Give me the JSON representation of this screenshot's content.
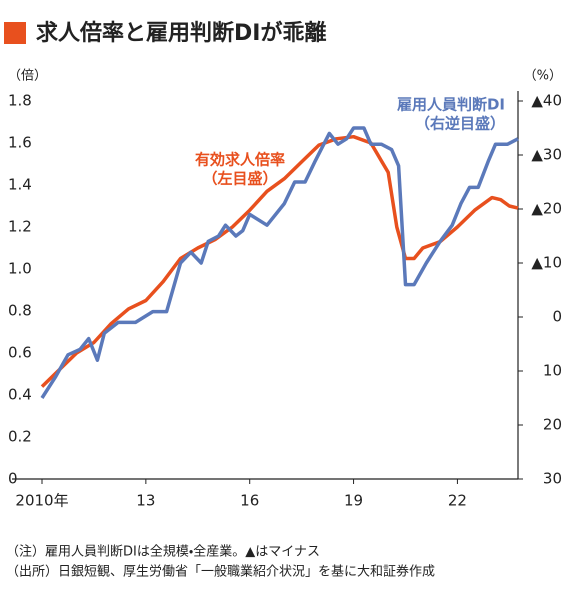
{
  "chart_data": {
    "type": "line",
    "title": "求人倍率と雇用判断DIが乖離",
    "y_label": "（倍）",
    "y2_label": "（%）",
    "xlim": [
      2010,
      2023.75
    ],
    "xticks": [
      {
        "value": 2010,
        "label": "2010年"
      },
      13,
      16,
      19,
      22
    ],
    "xtick_years": [
      2010,
      2013,
      2016,
      2019,
      2022
    ],
    "ylim": [
      0,
      1.8
    ],
    "yticks": [
      0,
      0.2,
      0.4,
      0.6,
      0.8,
      {
        "value": 1,
        "label": "1.0"
      },
      1.2,
      1.4,
      1.6,
      1.8
    ],
    "y2lim": [
      -40,
      30
    ],
    "y2_inverted": true,
    "y2ticks": [
      {
        "value": -40,
        "label": "▲40"
      },
      {
        "value": -30,
        "label": "▲30"
      },
      {
        "value": -20,
        "label": "▲20"
      },
      {
        "value": -10,
        "label": "▲10"
      },
      0,
      10,
      20,
      30
    ],
    "series": [
      {
        "name": "有効求人倍率",
        "color": "#e8501e",
        "axis": "y",
        "x": [
          2010,
          2010.5,
          2011,
          2011.5,
          2012,
          2012.5,
          2013,
          2013.5,
          2014,
          2014.5,
          2015,
          2015.5,
          2016,
          2016.5,
          2017,
          2017.5,
          2018,
          2018.5,
          2019,
          2019.5,
          2020,
          2020.25,
          2020.5,
          2020.75,
          2021,
          2021.5,
          2022,
          2022.5,
          2023,
          2023.25,
          2023.5,
          2023.75
        ],
        "values": [
          0.44,
          0.52,
          0.6,
          0.65,
          0.74,
          0.81,
          0.85,
          0.94,
          1.05,
          1.1,
          1.14,
          1.2,
          1.28,
          1.37,
          1.43,
          1.51,
          1.59,
          1.62,
          1.63,
          1.6,
          1.46,
          1.2,
          1.05,
          1.05,
          1.1,
          1.13,
          1.2,
          1.28,
          1.34,
          1.33,
          1.3,
          1.29
        ]
      },
      {
        "name": "雇用人員判断DI",
        "color": "#5b79ba",
        "axis": "y2",
        "x": [
          2010,
          2010.4,
          2010.75,
          2011.1,
          2011.35,
          2011.6,
          2011.8,
          2012.2,
          2012.7,
          2013.2,
          2013.6,
          2014,
          2014.3,
          2014.6,
          2014.8,
          2015.1,
          2015.3,
          2015.6,
          2015.8,
          2016,
          2016.5,
          2017,
          2017.3,
          2017.6,
          2017.9,
          2018.3,
          2018.55,
          2018.8,
          2019,
          2019.3,
          2019.5,
          2019.8,
          2020.1,
          2020.3,
          2020.5,
          2020.75,
          2021.1,
          2021.5,
          2021.85,
          2022.1,
          2022.35,
          2022.6,
          2022.9,
          2023.1,
          2023.45,
          2023.75
        ],
        "values": [
          15,
          11,
          7,
          6,
          4,
          8,
          3,
          1,
          1,
          -1,
          -1,
          -10,
          -12,
          -10,
          -14,
          -15,
          -17,
          -15,
          -16,
          -19,
          -17,
          -21,
          -25,
          -25,
          -29,
          -34,
          -32,
          -33,
          -35,
          -35,
          -32,
          -32,
          -31,
          -28,
          -6,
          -6,
          -10,
          -14,
          -17,
          -21,
          -24,
          -24,
          -29,
          -32,
          -32,
          -33
        ]
      }
    ],
    "annotations": [
      {
        "lines": [
          "有効求人倍率",
          "（左目盛）"
        ],
        "color": "#e8501e"
      },
      {
        "lines": [
          "雇用人員判断DI",
          "（右逆目盛）"
        ],
        "color": "#5b79ba"
      }
    ],
    "notes": [
      "（注）雇用人員判断DIは全規模・全産業。▲はマイナス",
      "（出所）日銀短観、厚生労働省「一般職業紹介状況」を基に大和証券作成"
    ]
  }
}
